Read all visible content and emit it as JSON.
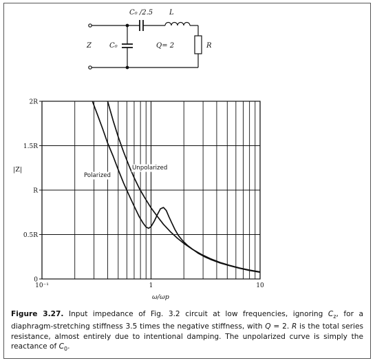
{
  "circuit": {
    "labels": {
      "c_series": "C₀ /2.5",
      "inductor": "L",
      "z": "Z",
      "c_shunt": "C₀",
      "q_value": "Q= 2",
      "resistor": "R"
    }
  },
  "chart_data": {
    "type": "line",
    "xscale": "log",
    "xlim": [
      0.1,
      10
    ],
    "ylim": [
      0,
      2
    ],
    "xlabel": "ω/ωp",
    "ylabel": "|Z|",
    "x_ticks": [
      {
        "value": 0.1,
        "label": "10⁻¹"
      },
      {
        "value": 1,
        "label": "1"
      },
      {
        "value": 10,
        "label": "10"
      }
    ],
    "y_ticks": [
      {
        "value": 0,
        "label": "0"
      },
      {
        "value": 0.5,
        "label": "0.5R"
      },
      {
        "value": 1,
        "label": "R"
      },
      {
        "value": 1.5,
        "label": "1.5R"
      },
      {
        "value": 2,
        "label": "2R"
      }
    ],
    "grid": true,
    "series": [
      {
        "name": "Polarized",
        "x": [
          0.29,
          0.32,
          0.36,
          0.4,
          0.45,
          0.5,
          0.56,
          0.63,
          0.7,
          0.78,
          0.85,
          0.9,
          0.95,
          1.0,
          1.07,
          1.15,
          1.22,
          1.3,
          1.38,
          1.46,
          1.55,
          1.65,
          1.78,
          1.95,
          2.15,
          2.4,
          2.7,
          3.1,
          3.6,
          4.3,
          5.2,
          6.5,
          8.0,
          10.0
        ],
        "y": [
          2.0,
          1.86,
          1.69,
          1.53,
          1.38,
          1.23,
          1.08,
          0.94,
          0.82,
          0.7,
          0.625,
          0.585,
          0.57,
          0.59,
          0.65,
          0.73,
          0.79,
          0.805,
          0.77,
          0.7,
          0.63,
          0.56,
          0.49,
          0.43,
          0.38,
          0.335,
          0.29,
          0.25,
          0.215,
          0.18,
          0.15,
          0.12,
          0.095,
          0.075
        ]
      },
      {
        "name": "Unpolarized",
        "x": [
          0.4,
          0.45,
          0.5,
          0.56,
          0.63,
          0.7,
          0.78,
          0.87,
          1.0,
          1.15,
          1.3,
          1.5,
          1.75,
          2.0,
          2.4,
          2.9,
          3.5,
          4.3,
          5.2,
          6.5,
          8.0,
          10.0
        ],
        "y": [
          2.0,
          1.78,
          1.6,
          1.43,
          1.27,
          1.14,
          1.02,
          0.92,
          0.8,
          0.7,
          0.615,
          0.533,
          0.457,
          0.4,
          0.333,
          0.276,
          0.229,
          0.186,
          0.154,
          0.123,
          0.1,
          0.08
        ]
      }
    ],
    "annotations": [
      {
        "text": "Polarized",
        "series": "Polarized"
      },
      {
        "text": "Unpolarized",
        "series": "Unpolarized"
      }
    ]
  },
  "caption": {
    "label": "Figure 3.27.",
    "text_1": " Input impedance of Fig. 3.2 circuit at low frequencies, ignoring ",
    "cz": "C",
    "cz_sub": "z",
    "text_2": ", for a diaphragm-stretching stiffness 3.5 times the negative stiffness, with ",
    "q": "Q",
    "text_3": " = 2. ",
    "r": "R",
    "text_4": " is the total series resistance, almost entirely due to intentional damping. The unpolarized curve is simply the reactance of ",
    "c0": "C",
    "c0_sub": "0",
    "text_5": "."
  }
}
